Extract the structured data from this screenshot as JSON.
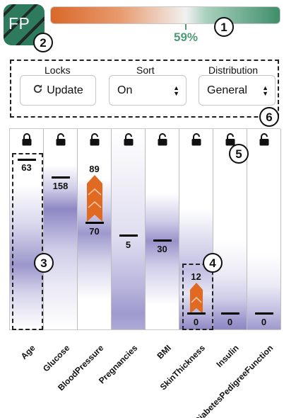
{
  "app": {
    "logo_text": "FP",
    "progress": {
      "label": "59%",
      "value_percent": 59
    }
  },
  "callouts": [
    "1",
    "2",
    "3",
    "4",
    "5",
    "6"
  ],
  "controls": {
    "locks": {
      "label": "Locks",
      "button_label": "Update"
    },
    "sort": {
      "label": "Sort",
      "value": "On"
    },
    "distribution": {
      "label": "Distribution",
      "value": "General"
    }
  },
  "features": [
    {
      "name": "Age",
      "locked": true,
      "value": "63"
    },
    {
      "name": "Glucose",
      "locked": false,
      "value": "158"
    },
    {
      "name": "BloodPressure",
      "locked": false,
      "value": "70",
      "suggested": "89"
    },
    {
      "name": "Pregnancies",
      "locked": false,
      "value": "5"
    },
    {
      "name": "BMI",
      "locked": false,
      "value": "30"
    },
    {
      "name": "SkinThickness",
      "locked": false,
      "value": "0",
      "suggested": "12"
    },
    {
      "name": "Insulin",
      "locked": false,
      "value": "0"
    },
    {
      "name": "DiabetesPedigreeFunction",
      "locked": false,
      "value": "0"
    }
  ],
  "colors": {
    "accent_green": "#4e9a76",
    "accent_orange": "#d9682a",
    "density_purple": "#8d88c4"
  },
  "icons": {
    "lock_closed": "lock-closed-icon",
    "lock_open": "lock-open-icon",
    "refresh": "refresh-icon",
    "select": "updown-icon"
  }
}
